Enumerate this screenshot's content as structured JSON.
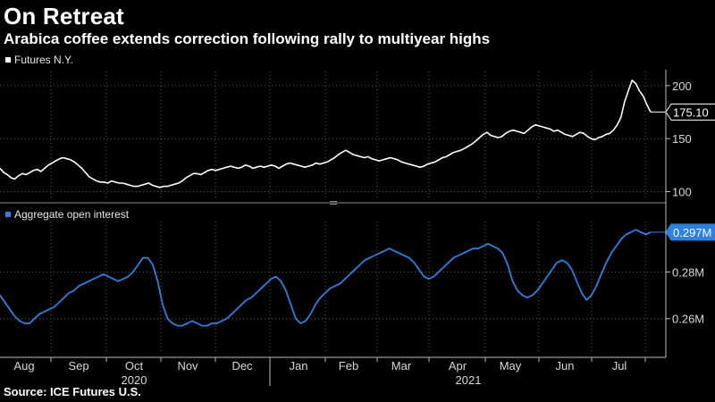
{
  "title": "On Retreat",
  "subtitle": "Arabica coffee extends correction following rally to multiyear highs",
  "source": "Source: ICE Futures U.S.",
  "colors": {
    "background": "#000000",
    "futures_line": "#ffffff",
    "oi_line": "#2f7fe0"
  },
  "chart_data": [
    {
      "type": "line",
      "legend": "Futures N.Y.",
      "ylim": [
        92,
        210
      ],
      "yticks": [
        "100",
        "150",
        "200"
      ],
      "ytick_values": [
        100,
        150,
        200
      ],
      "last_value_label": "175.10",
      "last_value": 175.1,
      "series": [
        {
          "name": "Futures N.Y.",
          "values": [
            122,
            118,
            116,
            113,
            112,
            115,
            117,
            116,
            118,
            120,
            121,
            119,
            122,
            125,
            127,
            129,
            131,
            132,
            131,
            130,
            128,
            125,
            122,
            118,
            114,
            112,
            110,
            109,
            109,
            108,
            110,
            109,
            108,
            108,
            107,
            106,
            105,
            105,
            106,
            107,
            108,
            106,
            105,
            104,
            105,
            105,
            106,
            107,
            108,
            110,
            113,
            115,
            117,
            117,
            116,
            118,
            120,
            121,
            120,
            121,
            122,
            123,
            124,
            123,
            122,
            123,
            125,
            124,
            122,
            123,
            124,
            123,
            124,
            125,
            124,
            122,
            124,
            126,
            127,
            126,
            125,
            124,
            123,
            124,
            125,
            127,
            126,
            127,
            128,
            130,
            132,
            135,
            137,
            139,
            137,
            135,
            134,
            133,
            132,
            133,
            131,
            130,
            129,
            130,
            131,
            132,
            131,
            130,
            128,
            127,
            126,
            125,
            124,
            123,
            124,
            126,
            127,
            128,
            130,
            132,
            133,
            135,
            137,
            138,
            139,
            141,
            143,
            145,
            148,
            151,
            154,
            156,
            153,
            152,
            151,
            152,
            155,
            157,
            158,
            157,
            156,
            155,
            158,
            161,
            163,
            162,
            161,
            160,
            159,
            157,
            158,
            156,
            154,
            153,
            152,
            154,
            156,
            155,
            152,
            150,
            149,
            151,
            152,
            154,
            155,
            158,
            163,
            170,
            185,
            195,
            205,
            202,
            195,
            190,
            182,
            175.1
          ]
        }
      ]
    },
    {
      "type": "line",
      "legend": "Aggregate open interest",
      "ylim": [
        0.245,
        0.3
      ],
      "yticks": [
        "0.26M",
        "0.28M"
      ],
      "ytick_values": [
        0.26,
        0.28
      ],
      "last_value_label": "0.297M",
      "last_value": 0.297,
      "series": [
        {
          "name": "Aggregate open interest",
          "values": [
            0.27,
            0.267,
            0.264,
            0.261,
            0.259,
            0.258,
            0.258,
            0.26,
            0.262,
            0.263,
            0.264,
            0.265,
            0.267,
            0.269,
            0.271,
            0.272,
            0.274,
            0.275,
            0.276,
            0.277,
            0.278,
            0.279,
            0.278,
            0.277,
            0.276,
            0.277,
            0.278,
            0.28,
            0.283,
            0.286,
            0.286,
            0.283,
            0.276,
            0.266,
            0.26,
            0.258,
            0.257,
            0.257,
            0.258,
            0.259,
            0.258,
            0.257,
            0.257,
            0.258,
            0.258,
            0.259,
            0.26,
            0.262,
            0.264,
            0.266,
            0.268,
            0.269,
            0.271,
            0.273,
            0.275,
            0.277,
            0.278,
            0.276,
            0.272,
            0.266,
            0.26,
            0.258,
            0.259,
            0.262,
            0.266,
            0.269,
            0.271,
            0.273,
            0.274,
            0.275,
            0.277,
            0.279,
            0.281,
            0.283,
            0.285,
            0.286,
            0.287,
            0.288,
            0.289,
            0.29,
            0.289,
            0.288,
            0.287,
            0.286,
            0.284,
            0.281,
            0.278,
            0.277,
            0.278,
            0.28,
            0.282,
            0.284,
            0.286,
            0.287,
            0.288,
            0.289,
            0.29,
            0.29,
            0.291,
            0.292,
            0.291,
            0.29,
            0.288,
            0.283,
            0.276,
            0.272,
            0.27,
            0.269,
            0.27,
            0.272,
            0.275,
            0.278,
            0.281,
            0.284,
            0.285,
            0.284,
            0.281,
            0.276,
            0.271,
            0.268,
            0.27,
            0.274,
            0.279,
            0.284,
            0.288,
            0.291,
            0.294,
            0.296,
            0.297,
            0.298,
            0.297,
            0.296,
            0.297
          ]
        }
      ]
    }
  ],
  "x_axis": {
    "months": [
      "Aug",
      "Sep",
      "Oct",
      "Nov",
      "Dec",
      "Jan",
      "Feb",
      "Mar",
      "Apr",
      "May",
      "Jun",
      "Jul"
    ],
    "years": [
      "2020",
      "2021"
    ]
  }
}
